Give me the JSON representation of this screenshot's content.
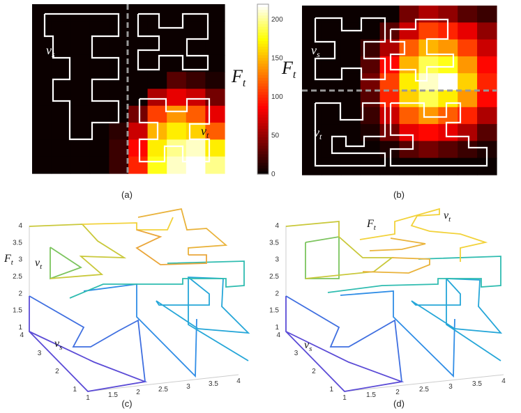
{
  "chart_data": [
    {
      "type": "heatmap",
      "caption": "(a)",
      "grid": {
        "rows": 10,
        "cols": 10
      },
      "values": [
        [
          0,
          0,
          0,
          0,
          0,
          0,
          0,
          0,
          0,
          0
        ],
        [
          0,
          0,
          0,
          0,
          0,
          0,
          0,
          0,
          0,
          0
        ],
        [
          0,
          0,
          0,
          0,
          0,
          0,
          0,
          0,
          0,
          0
        ],
        [
          0,
          0,
          0,
          0,
          0,
          0,
          0,
          0,
          0,
          0
        ],
        [
          0,
          0,
          0,
          0,
          0,
          0,
          0,
          30,
          20,
          10
        ],
        [
          0,
          0,
          0,
          0,
          0,
          0,
          60,
          80,
          70,
          40
        ],
        [
          0,
          0,
          0,
          0,
          0,
          40,
          110,
          140,
          120,
          80
        ],
        [
          0,
          0,
          0,
          0,
          15,
          70,
          150,
          170,
          160,
          120
        ],
        [
          0,
          0,
          0,
          0,
          20,
          90,
          170,
          200,
          210,
          170
        ],
        [
          0,
          0,
          0,
          0,
          20,
          100,
          180,
          210,
          220,
          200
        ]
      ],
      "divider": "vertical-dashed",
      "labels": {
        "source": "v",
        "source_sub": "s",
        "target": "v",
        "target_sub": "t"
      },
      "side_label": {
        "main": "F",
        "sub": "t"
      },
      "colorbar": {
        "min": 0,
        "max": 220,
        "ticks": [
          0,
          50,
          100,
          150,
          200
        ]
      }
    },
    {
      "type": "heatmap",
      "caption": "(b)",
      "grid": {
        "rows": 10,
        "cols": 10
      },
      "values": [
        [
          0,
          0,
          0,
          0,
          0,
          40,
          60,
          50,
          30,
          20
        ],
        [
          0,
          0,
          0,
          0,
          30,
          70,
          110,
          100,
          80,
          50
        ],
        [
          0,
          0,
          0,
          20,
          60,
          120,
          150,
          140,
          110,
          70
        ],
        [
          0,
          0,
          0,
          30,
          90,
          150,
          190,
          180,
          140,
          90
        ],
        [
          0,
          0,
          0,
          40,
          110,
          170,
          210,
          220,
          160,
          100
        ],
        [
          0,
          0,
          0,
          30,
          100,
          160,
          190,
          170,
          140,
          90
        ],
        [
          0,
          0,
          0,
          20,
          70,
          120,
          140,
          120,
          100,
          60
        ],
        [
          0,
          0,
          0,
          10,
          40,
          80,
          90,
          80,
          60,
          30
        ],
        [
          0,
          0,
          0,
          0,
          10,
          30,
          40,
          30,
          20,
          10
        ],
        [
          0,
          0,
          0,
          0,
          0,
          0,
          0,
          0,
          0,
          0
        ]
      ],
      "divider": "horizontal-dashed",
      "labels": {
        "source": "v",
        "source_sub": "s",
        "target": "v",
        "target_sub": "t"
      },
      "side_label": {
        "main": "F",
        "sub": "t"
      }
    },
    {
      "type": "line",
      "caption": "(c)",
      "x_ticks": [
        "1",
        "1.5",
        "2",
        "2.5",
        "3",
        "3.5",
        "4"
      ],
      "y_ticks": [
        "1",
        "2",
        "3",
        "4"
      ],
      "z_ticks": [
        "1",
        "1.5",
        "2",
        "2.5",
        "3",
        "3.5",
        "4"
      ],
      "zlim": [
        1,
        4
      ],
      "labels": {
        "source": "v",
        "source_sub": "s",
        "target": "v",
        "target_sub": "t",
        "axis": "F",
        "axis_sub": "t"
      }
    },
    {
      "type": "line",
      "caption": "(d)",
      "x_ticks": [
        "1",
        "1.5",
        "2",
        "2.5",
        "3",
        "3.5",
        "4"
      ],
      "y_ticks": [
        "1",
        "2",
        "3",
        "4"
      ],
      "z_ticks": [
        "1",
        "1.5",
        "2",
        "2.5",
        "3",
        "3.5",
        "4"
      ],
      "zlim": [
        1,
        4
      ],
      "labels": {
        "source": "v",
        "source_sub": "s",
        "target": "v",
        "target_sub": "t",
        "axis": "F",
        "axis_sub": "t"
      }
    }
  ]
}
